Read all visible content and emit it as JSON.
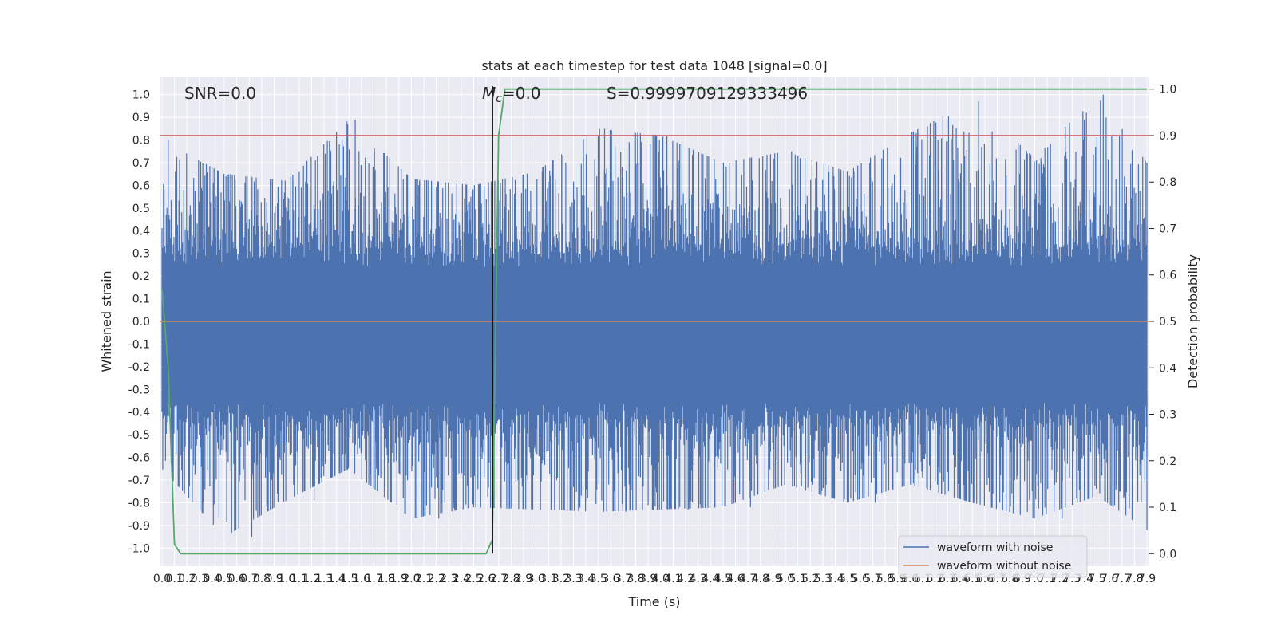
{
  "chart_data": {
    "type": "line",
    "title": "stats at each timestep for test data 1048 [signal=0.0]",
    "xlabel": "Time (s)",
    "ylabel_left": "Whitened strain",
    "ylabel_right": "Detection probability",
    "xlim": [
      0.0,
      7.9
    ],
    "ylim_left": [
      -1.08,
      1.08
    ],
    "ylim_right": [
      -0.027,
      1.027
    ],
    "x_ticks": [
      "0.0",
      "0.1",
      "0.2",
      "0.3",
      "0.4",
      "0.5",
      "0.6",
      "0.7",
      "0.8",
      "0.9",
      "1.0",
      "1.1",
      "1.2",
      "1.3",
      "1.4",
      "1.5",
      "1.6",
      "1.7",
      "1.8",
      "1.9",
      "2.0",
      "2.1",
      "2.2",
      "2.3",
      "2.4",
      "2.5",
      "2.6",
      "2.7",
      "2.8",
      "2.9",
      "3.0",
      "3.1",
      "3.2",
      "3.3",
      "3.4",
      "3.5",
      "3.6",
      "3.7",
      "3.8",
      "3.9",
      "4.0",
      "4.1",
      "4.2",
      "4.3",
      "4.4",
      "4.5",
      "4.6",
      "4.7",
      "4.8",
      "4.9",
      "5.0",
      "5.1",
      "5.2",
      "5.3",
      "5.4",
      "5.5",
      "5.6",
      "5.7",
      "5.8",
      "5.9",
      "6.0",
      "6.1",
      "6.2",
      "6.3",
      "6.4",
      "6.5",
      "6.6",
      "6.7",
      "6.8",
      "6.9",
      "7.0",
      "7.1",
      "7.2",
      "7.3",
      "7.4",
      "7.5",
      "7.6",
      "7.7",
      "7.8",
      "7.9"
    ],
    "y_ticks_left": [
      "1.0",
      "0.9",
      "0.8",
      "0.7",
      "0.6",
      "0.5",
      "0.4",
      "0.3",
      "0.2",
      "0.1",
      "0.0",
      "-0.1",
      "-0.2",
      "-0.3",
      "-0.4",
      "-0.5",
      "-0.6",
      "-0.7",
      "-0.8",
      "-0.9",
      "-1.0"
    ],
    "y_ticks_right": [
      "1.0",
      "0.9",
      "0.8",
      "0.7",
      "0.6",
      "0.5",
      "0.4",
      "0.3",
      "0.2",
      "0.1",
      "0.0"
    ],
    "annotations": {
      "snr": "SNR=0.0",
      "mc_symbol": "M",
      "mc_sub": "c",
      "mc_value": "=0.0",
      "score": "S=0.9999709129333496"
    },
    "threshold": 0.9,
    "peak_time": 2.65,
    "detection_probability": {
      "x": [
        0.0,
        0.05,
        0.1,
        0.15,
        0.2,
        2.6,
        2.65,
        2.7,
        2.75,
        2.8,
        7.9
      ],
      "y": [
        0.57,
        0.4,
        0.02,
        0.0,
        0.0,
        0.0,
        0.03,
        0.9,
        1.0,
        1.0,
        1.0
      ]
    },
    "noise_envelope": {
      "x": [
        0.0,
        0.5,
        1.0,
        1.5,
        2.0,
        2.5,
        3.0,
        3.5,
        4.0,
        4.5,
        5.0,
        5.5,
        6.0,
        6.5,
        7.0,
        7.5,
        7.9
      ],
      "upper": [
        0.8,
        0.65,
        0.62,
        0.89,
        0.63,
        0.6,
        0.66,
        0.85,
        0.82,
        0.7,
        0.75,
        0.66,
        0.83,
        0.97,
        0.72,
        1.0,
        0.7
      ],
      "lower": [
        -0.65,
        -0.95,
        -0.79,
        -0.65,
        -0.87,
        -0.82,
        -0.83,
        -0.84,
        -0.83,
        -0.82,
        -0.72,
        -0.8,
        -0.72,
        -0.8,
        -0.87,
        -0.77,
        -0.92
      ]
    },
    "series": [
      {
        "name": "waveform with noise",
        "color": "#4c72b0"
      },
      {
        "name": "waveform without noise",
        "color": "#dd8452"
      }
    ],
    "detection_color": "#55a868",
    "threshold_color": "#c44e52",
    "grid": true,
    "legend": "lower right"
  }
}
